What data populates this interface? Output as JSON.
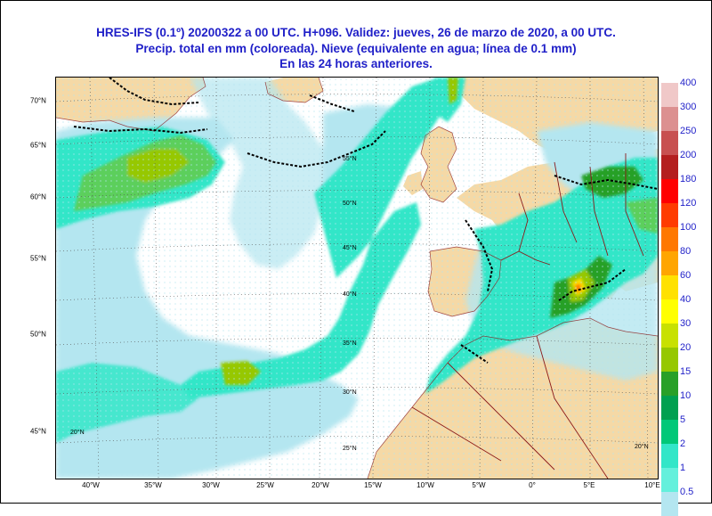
{
  "header": {
    "line1": "HRES-IFS (0.1º) 20200322 a 00 UTC.  H+096. Validez: jueves, 26 de marzo de 2020,  a  00 UTC.",
    "line2": "Precip. total en mm (coloreada). Nieve (equivalente en agua; línea de 0.1 mm)",
    "line3": "En las 24 horas anteriores."
  },
  "longitude_labels": [
    "40°W",
    "35°W",
    "30°W",
    "25°W",
    "20°W",
    "15°W",
    "10°W",
    "5°W",
    "0°",
    "5°E",
    "10°E"
  ],
  "latitude_labels_left": [
    "70°N",
    "65°N",
    "60°N",
    "55°N",
    "50°N",
    "45°N"
  ],
  "latitude_labels_inner": [
    "55°N",
    "50°N",
    "45°N",
    "40°N",
    "35°N",
    "30°N",
    "25°N"
  ],
  "corner_labels": [
    "20°N",
    "20°N"
  ],
  "colorbar": {
    "labels": [
      "400",
      "300",
      "250",
      "200",
      "180",
      "120",
      "100",
      "80",
      "60",
      "40",
      "30",
      "20",
      "15",
      "10",
      "5",
      "2",
      "1",
      "0.5"
    ],
    "colors": [
      "#f0c8c8",
      "#dc9090",
      "#c85050",
      "#b41e1e",
      "#ff0000",
      "#ff3c00",
      "#ff7800",
      "#ffa500",
      "#ffe100",
      "#ffff00",
      "#c8e100",
      "#96c800",
      "#28a028",
      "#00a050",
      "#00c878",
      "#32e6c8",
      "#64f0dc",
      "#b4e6f0"
    ]
  },
  "colors": {
    "title": "#1f1fc8",
    "sea": "#ffffff",
    "land": "#f5d9a6",
    "precip_light": "#b4e6f0",
    "precip_mid": "#32e6c8",
    "precip_heavy": "#96c800",
    "snow_line": "#000000",
    "border": "#8b1a1a"
  }
}
